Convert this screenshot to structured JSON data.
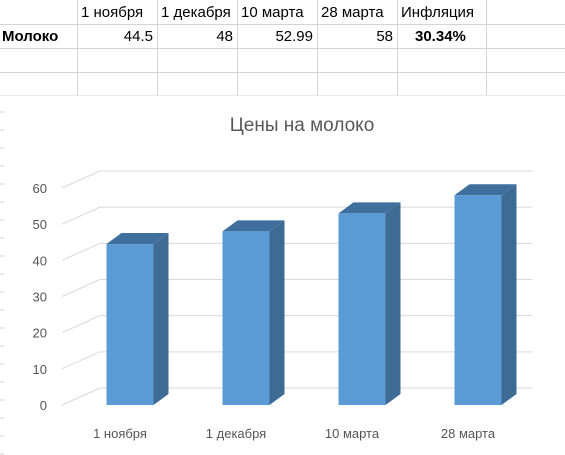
{
  "sheet": {
    "headers": [
      "1 ноября",
      "1 декабря",
      "10 марта",
      "28 марта",
      "Инфляция"
    ],
    "row_label": "Молоко",
    "values": [
      "44.5",
      "48",
      "52.99",
      "58"
    ],
    "inflation": "30.34%"
  },
  "chart_data": {
    "type": "bar",
    "style": "3d-column",
    "title": "Цены на молоко",
    "categories": [
      "1 ноября",
      "1 декабря",
      "10 марта",
      "28 марта"
    ],
    "values": [
      44.5,
      48,
      52.99,
      58
    ],
    "ylim": [
      0,
      60
    ],
    "yticks": [
      "0",
      "10",
      "20",
      "30",
      "40",
      "50",
      "60"
    ],
    "grid": true,
    "legend": "none",
    "colors": {
      "bar_front": "#5b9bd5",
      "bar_side": "#3e6b94",
      "bar_top": "#3f6f9c"
    }
  }
}
